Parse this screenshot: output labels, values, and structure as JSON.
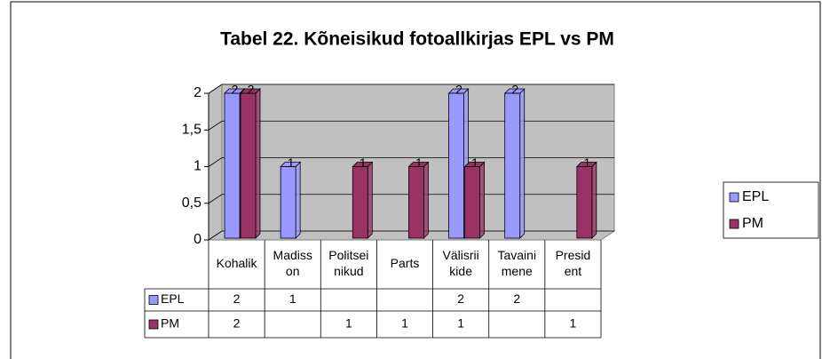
{
  "chart_data": {
    "type": "bar3d",
    "title": "Tabel 22. Kõneisikud fotoallkirjas EPL vs PM",
    "categories": [
      [
        "Kohalik"
      ],
      [
        "Madiss",
        "on"
      ],
      [
        "Politsei",
        "nikud"
      ],
      [
        "Parts"
      ],
      [
        "Välisrii",
        "kide"
      ],
      [
        "Tavaini",
        "mene"
      ],
      [
        "Presid",
        "ent"
      ]
    ],
    "series": [
      {
        "name": "EPL",
        "color": "#9999ff",
        "values": [
          2,
          1,
          null,
          null,
          2,
          2,
          null
        ]
      },
      {
        "name": "PM",
        "color": "#993366",
        "values": [
          2,
          null,
          1,
          1,
          1,
          null,
          1
        ]
      }
    ],
    "ylim": [
      0,
      2
    ],
    "yticks": [
      0,
      {
        "value": 0.5,
        "label": "0,5"
      },
      1,
      {
        "value": 1.5,
        "label": "1,5"
      },
      2
    ],
    "grid": true,
    "legend": "right",
    "data_table": true
  }
}
